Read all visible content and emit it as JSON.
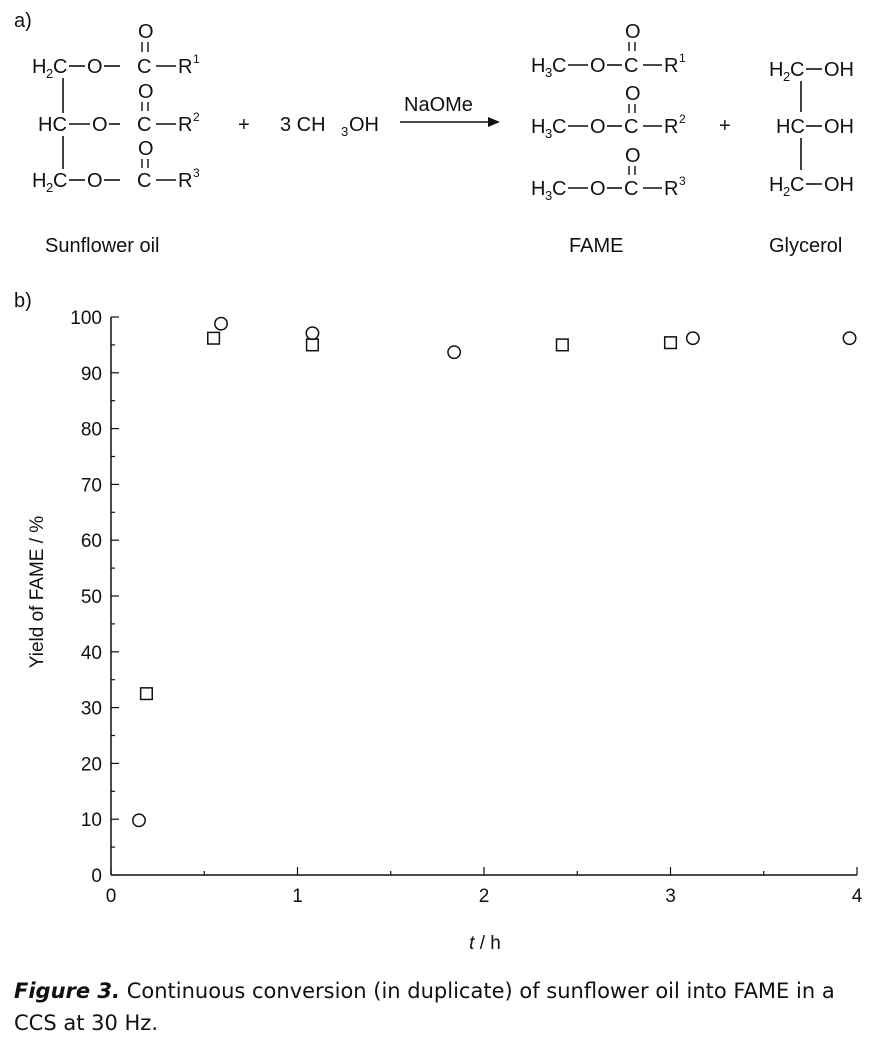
{
  "panel_a_label": "a)",
  "panel_b_label": "b)",
  "scheme": {
    "reactant_name": "Sunflower oil",
    "product1_name": "FAME",
    "product2_name": "Glycerol",
    "reagent_coeff": "3 CH",
    "reagent_sub": "3",
    "reagent_tail": "OH",
    "catalyst": "NaOMe",
    "plus": "+",
    "O": "O",
    "carbonyl_C": "C",
    "dash": "−",
    "R1": "R",
    "R1_sup": "1",
    "R2": "R",
    "R2_sup": "2",
    "R3": "R",
    "R3_sup": "3",
    "ch2_H": "H",
    "ch2_sub": "2",
    "ch2_C": "C",
    "ch_text": "HC",
    "ester_O": "O",
    "me_H": "H",
    "me_sub": "3",
    "me_C": "C",
    "oh": "OH"
  },
  "chart_data": {
    "type": "scatter",
    "xlabel_italic": "t",
    "xlabel_rest": " / h",
    "ylabel": "Yield of FAME / %",
    "xlim": [
      0,
      4
    ],
    "ylim": [
      0,
      100
    ],
    "xticks": [
      "0",
      "1",
      "2",
      "3",
      "4"
    ],
    "yticks": [
      "0",
      "10",
      "20",
      "30",
      "40",
      "50",
      "60",
      "70",
      "80",
      "90",
      "100"
    ],
    "series": [
      {
        "marker": "circle",
        "x": [
          0.15,
          0.59,
          1.08,
          1.84,
          3.12,
          3.96
        ],
        "y": [
          9.8,
          98.8,
          97.1,
          93.7,
          96.2,
          96.2
        ]
      },
      {
        "marker": "square",
        "x": [
          0.19,
          0.55,
          1.08,
          2.42,
          3.0
        ],
        "y": [
          32.5,
          96.2,
          95.0,
          95.0,
          95.4
        ]
      }
    ]
  },
  "caption": {
    "figure_label": "Figure 3.",
    "text": " Continuous conversion (in duplicate) of sunflower oil into FAME in a CCS at 30 Hz."
  }
}
